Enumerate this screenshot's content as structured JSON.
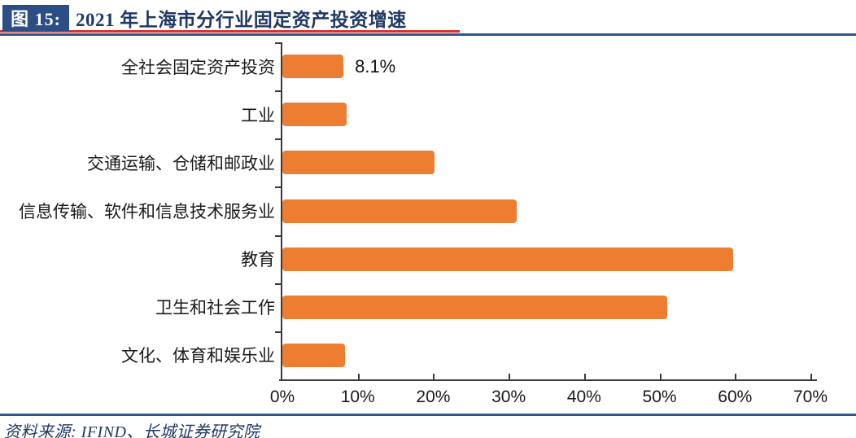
{
  "header": {
    "figure_label": "图 15:",
    "title": "2021 年上海市分行业固定资产投资增速"
  },
  "footer": {
    "source": "资料来源: IFIND、长城证券研究院"
  },
  "colors": {
    "bar": "#ED7D31",
    "navy_text": "#1F3864",
    "badge_bg": "#2B4E87",
    "rule": "#2D5986",
    "red_underline": "#D93030",
    "axis": "#3A3A3A"
  },
  "chart_data": {
    "type": "bar",
    "orientation": "horizontal",
    "title": "2021 年上海市分行业固定资产投资增速",
    "categories": [
      "全社会固定资产投资",
      "工业",
      "交通运输、仓储和邮政业",
      "信息传输、软件和信息技术服务业",
      "教育",
      "卫生和社会工作",
      "文化、体育和娱乐业"
    ],
    "values": [
      8.1,
      8.5,
      20.2,
      31.1,
      59.8,
      51.0,
      8.3
    ],
    "data_labels": [
      "8.1%",
      "",
      "",
      "",
      "",
      "",
      ""
    ],
    "x_ticks": [
      "0%",
      "10%",
      "20%",
      "30%",
      "40%",
      "50%",
      "60%",
      "70%"
    ],
    "xlim": [
      0,
      70
    ],
    "grid": false,
    "legend": false,
    "bar_color": "#ED7D31"
  }
}
